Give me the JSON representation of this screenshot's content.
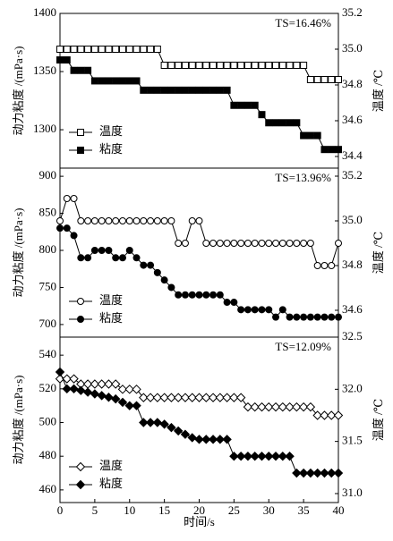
{
  "chart_data": [
    {
      "type": "line",
      "annotation": "TS=16.46%",
      "ylabel": "动力粘度 /(mPa·s)",
      "y2label": "温度 /℃",
      "legend": "lower left",
      "xlim": [
        0,
        40
      ],
      "x": [
        0,
        1,
        2,
        3,
        4,
        5,
        6,
        7,
        8,
        9,
        10,
        11,
        12,
        13,
        14,
        15,
        16,
        17,
        18,
        19,
        20,
        21,
        22,
        23,
        24,
        25,
        26,
        27,
        28,
        29,
        30,
        31,
        32,
        33,
        34,
        35,
        36,
        37,
        38,
        39,
        40
      ],
      "ylim": [
        1267,
        1400
      ],
      "yticks": [
        1300,
        1350,
        1400
      ],
      "y2lim": [
        34.335,
        35.2
      ],
      "y2ticks": [
        34.4,
        34.6,
        34.8,
        {
          "value": 35,
          "label": "35.0"
        },
        35.2
      ],
      "series": [
        {
          "name": "温度",
          "axis": "y2",
          "marker": "square",
          "color": "#000000",
          "fill": "#ffffff",
          "values": [
            35,
            35,
            35,
            35,
            35,
            35,
            35,
            35,
            35,
            35,
            35,
            35,
            35,
            35,
            35,
            34.91,
            34.91,
            34.91,
            34.91,
            34.91,
            34.91,
            34.91,
            34.91,
            34.91,
            34.91,
            34.91,
            34.91,
            34.91,
            34.91,
            34.91,
            34.91,
            34.91,
            34.91,
            34.91,
            34.91,
            34.91,
            34.83,
            34.83,
            34.83,
            34.83,
            34.83
          ]
        },
        {
          "name": "粘度",
          "marker": "square",
          "color": "#000000",
          "fill": "#000000",
          "values": [
            1360,
            1360,
            1351,
            1351,
            1351,
            1342,
            1342,
            1342,
            1342,
            1342,
            1342,
            1342,
            1334,
            1334,
            1334,
            1334,
            1334,
            1334,
            1334,
            1334,
            1334,
            1334,
            1334,
            1334,
            1334,
            1321,
            1321,
            1321,
            1321,
            1313,
            1306,
            1306,
            1306,
            1306,
            1306,
            1295,
            1295,
            1295,
            1283,
            1283,
            1283
          ]
        }
      ]
    },
    {
      "type": "line",
      "annotation": "TS=13.96%",
      "ylabel": "动力粘度 /(mPa·s)",
      "y2label": "温度 /℃",
      "legend": "lower left",
      "xlim": [
        0,
        40
      ],
      "x": [
        0,
        1,
        2,
        3,
        4,
        5,
        6,
        7,
        8,
        9,
        10,
        11,
        12,
        13,
        14,
        15,
        16,
        17,
        18,
        19,
        20,
        21,
        22,
        23,
        24,
        25,
        26,
        27,
        28,
        29,
        30,
        31,
        32,
        33,
        34,
        35,
        36,
        37,
        38,
        39,
        40
      ],
      "ylim": [
        683,
        911
      ],
      "yticks": [
        700,
        750,
        800,
        850,
        900
      ],
      "y2lim": [
        34.48,
        35.236
      ],
      "y2ticks": [
        34.6,
        34.8,
        {
          "value": 35,
          "label": "35.0"
        },
        35.2
      ],
      "series": [
        {
          "name": "温度",
          "axis": "y2",
          "marker": "circle",
          "color": "#000000",
          "fill": "#ffffff",
          "values": [
            35,
            35.1,
            35.1,
            35,
            35,
            35,
            35,
            35,
            35,
            35,
            35,
            35,
            35,
            35,
            35,
            35,
            35,
            34.9,
            34.9,
            35,
            35,
            34.9,
            34.9,
            34.9,
            34.9,
            34.9,
            34.9,
            34.9,
            34.9,
            34.9,
            34.9,
            34.9,
            34.9,
            34.9,
            34.9,
            34.9,
            34.9,
            34.8,
            34.8,
            34.8,
            34.9
          ]
        },
        {
          "name": "粘度",
          "marker": "circle",
          "color": "#000000",
          "fill": "#000000",
          "values": [
            830,
            830,
            820,
            790,
            790,
            800,
            800,
            800,
            790,
            790,
            800,
            790,
            780,
            780,
            770,
            760,
            750,
            740,
            740,
            740,
            740,
            740,
            740,
            740,
            730,
            730,
            720,
            720,
            720,
            720,
            720,
            710,
            720,
            710,
            710,
            710,
            710,
            710,
            710,
            710,
            710
          ]
        }
      ]
    },
    {
      "type": "line",
      "annotation": "TS=12.09%",
      "ylabel": "动力粘度 /(mPa·s)",
      "y2label": "温度 /℃",
      "xlabel": "时间/s",
      "legend": "lower left",
      "xlim": [
        0,
        40
      ],
      "xticks": [
        0,
        5,
        10,
        15,
        20,
        25,
        30,
        35,
        40
      ],
      "x": [
        0,
        1,
        2,
        3,
        4,
        5,
        6,
        7,
        8,
        9,
        10,
        11,
        12,
        13,
        14,
        15,
        16,
        17,
        18,
        19,
        20,
        21,
        22,
        23,
        24,
        25,
        26,
        27,
        28,
        29,
        30,
        31,
        32,
        33,
        34,
        35,
        36,
        37,
        38,
        39,
        40
      ],
      "ylim": [
        452.5,
        550.7
      ],
      "yticks": [
        460,
        480,
        500,
        520,
        540
      ],
      "y2lim": [
        30.914,
        32.5
      ],
      "y2ticks": [
        {
          "value": 31,
          "label": "31.0"
        },
        31.5,
        {
          "value": 32,
          "label": "32.0"
        },
        32.5
      ],
      "series": [
        {
          "name": "温度",
          "axis": "y2",
          "marker": "diamond",
          "color": "#000000",
          "fill": "#ffffff",
          "values": [
            32.1,
            32.1,
            32.1,
            32.05,
            32.05,
            32.05,
            32.05,
            32.05,
            32.05,
            32,
            32,
            32,
            31.92,
            31.92,
            31.92,
            31.92,
            31.92,
            31.92,
            31.92,
            31.92,
            31.92,
            31.92,
            31.92,
            31.92,
            31.92,
            31.92,
            31.92,
            31.83,
            31.83,
            31.83,
            31.83,
            31.83,
            31.83,
            31.83,
            31.83,
            31.83,
            31.83,
            31.75,
            31.75,
            31.75,
            31.75
          ]
        },
        {
          "name": "粘度",
          "marker": "diamond",
          "color": "#000000",
          "fill": "#000000",
          "values": [
            530,
            520,
            520,
            519,
            518,
            517,
            516,
            515,
            514,
            512,
            510,
            510,
            500,
            500,
            500,
            499,
            497,
            495,
            493,
            491,
            490,
            490,
            490,
            490,
            490,
            480,
            480,
            480,
            480,
            480,
            480,
            480,
            480,
            480,
            470,
            470,
            470,
            470,
            470,
            470,
            470
          ]
        }
      ]
    }
  ]
}
